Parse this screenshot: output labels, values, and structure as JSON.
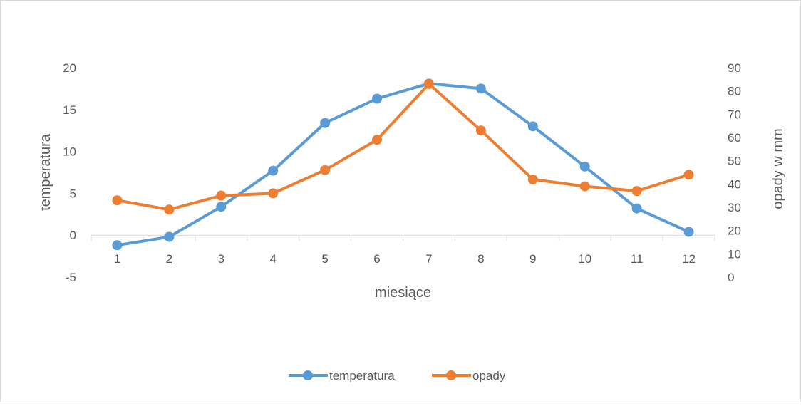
{
  "chart_data": {
    "type": "line",
    "title": "",
    "xlabel": "miesiące",
    "ylabel": "temperatura",
    "y2label": "opady w mm",
    "categories": [
      "1",
      "2",
      "3",
      "4",
      "5",
      "6",
      "7",
      "8",
      "9",
      "10",
      "11",
      "12"
    ],
    "ylim": [
      -5,
      20
    ],
    "yticks": [
      "-5",
      "0",
      "5",
      "10",
      "15",
      "20"
    ],
    "y2lim": [
      0,
      90
    ],
    "y2ticks": [
      "0",
      "10",
      "20",
      "30",
      "40",
      "50",
      "60",
      "70",
      "80",
      "90"
    ],
    "grid": false,
    "legend": "bottom",
    "series": [
      {
        "name": "temperatura",
        "axis": "left",
        "color": "#5B9BD5",
        "values": [
          -1.2,
          -0.2,
          3.4,
          7.7,
          13.4,
          16.3,
          18.1,
          17.5,
          13.0,
          8.2,
          3.2,
          0.4
        ]
      },
      {
        "name": "opady",
        "axis": "right",
        "color": "#ED7D31",
        "values": [
          33,
          29,
          35,
          36,
          46,
          59,
          83,
          63,
          42,
          39,
          37,
          44
        ]
      }
    ]
  }
}
